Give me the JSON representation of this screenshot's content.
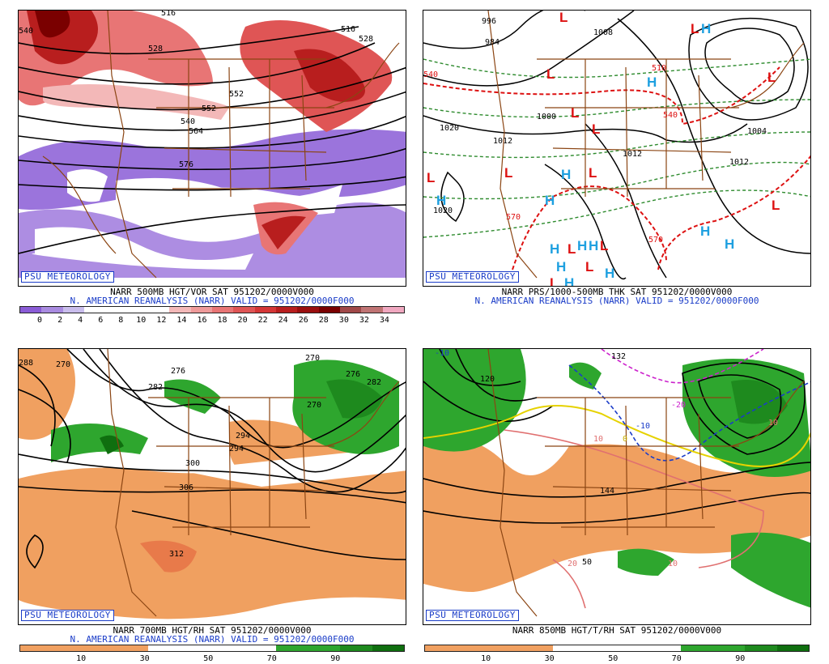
{
  "psu_label": "PSU METEOROLOGY",
  "panels": {
    "tl": {
      "line1": "NARR 500MB HGT/VOR SAT 951202/0000V000",
      "line2": "N. AMERICAN REANALYSIS (NARR) VALID = 951202/0000F000",
      "scale": [
        "0",
        "2",
        "4",
        "6",
        "8",
        "10",
        "12",
        "14",
        "16",
        "18",
        "20",
        "22",
        "24",
        "26",
        "28",
        "30",
        "32",
        "34"
      ],
      "contours": [
        "540",
        "552",
        "516",
        "528",
        "552",
        "564",
        "576",
        "528",
        "516",
        "540"
      ]
    },
    "tr": {
      "line1": "NARR PRS/1000-500MB THK SAT 951202/0000V000",
      "line2": "N. AMERICAN REANALYSIS (NARR) VALID = 951202/0000F000",
      "contours": [
        "996",
        "984",
        "1000",
        "1020",
        "1012",
        "1008",
        "1012",
        "1004",
        "1012",
        "1020",
        "510",
        "540",
        "570",
        "540",
        "570"
      ]
    },
    "bl": {
      "line1": "NARR 700MB HGT/RH SAT 951202/0000V000",
      "line2": "N. AMERICAN REANALYSIS (NARR) VALID = 951202/0000F000",
      "scale": [
        "10",
        "30",
        "50",
        "70",
        "90"
      ],
      "contours": [
        "270",
        "276",
        "282",
        "288",
        "294",
        "300",
        "306",
        "312",
        "276",
        "270",
        "282",
        "270",
        "294"
      ]
    },
    "br": {
      "line1": "NARR 850MB HGT/T/RH SAT 951202/0000V000",
      "scale": [
        "10",
        "30",
        "50",
        "70",
        "90"
      ],
      "contours": [
        "-10",
        "132",
        "120",
        "-20",
        "-10",
        "10",
        "0",
        "144",
        "20",
        "50",
        "10",
        "10"
      ]
    }
  },
  "colors": {
    "vort": [
      "#8a5cd6",
      "#a98be0",
      "#c9bdec",
      "#ffffff",
      "#ffffff",
      "#ffffff",
      "#ffffff",
      "#f3b8b8",
      "#ee9a9a",
      "#e87575",
      "#df5555",
      "#d43636",
      "#b81e1e",
      "#9a0e0e",
      "#7a0000",
      "#a04848",
      "#c07474",
      "#f0a8c0"
    ],
    "rh": [
      "#f0a060",
      "#f0a060",
      "#f0a060",
      "#f0a060",
      "#ffffff",
      "#ffffff",
      "#ffffff",
      "#ffffff",
      "#2ea62e",
      "#2ea62e",
      "#1e8a1e",
      "#0f6f0f"
    ]
  }
}
